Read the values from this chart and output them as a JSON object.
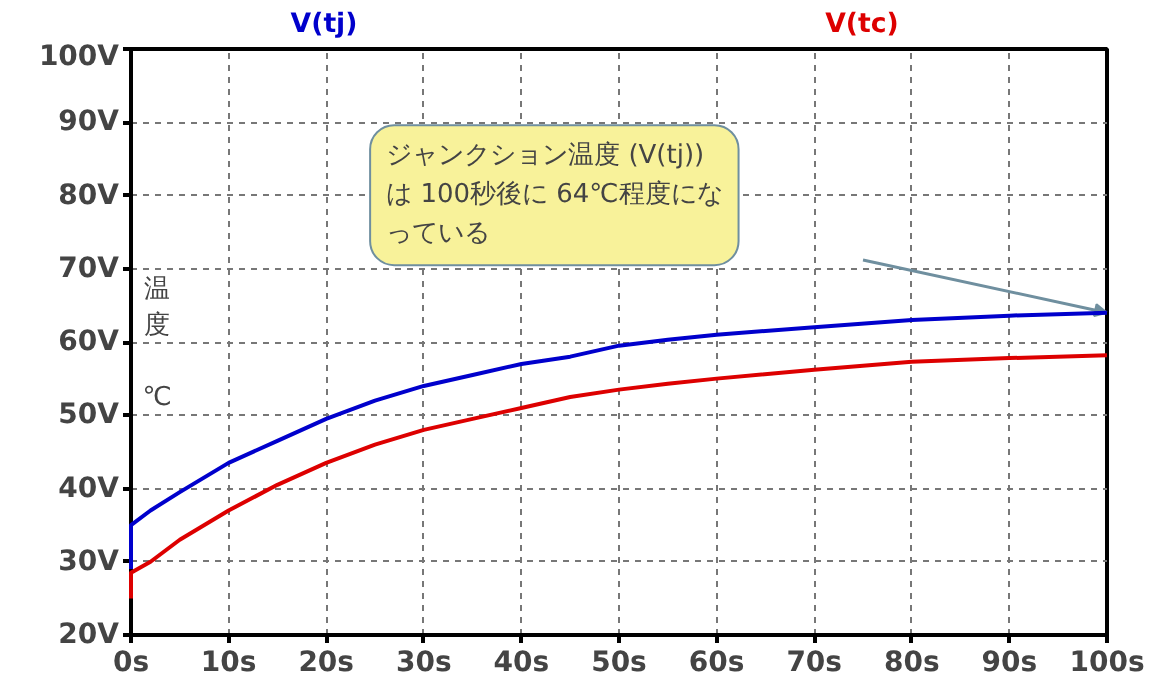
{
  "chart_data": {
    "type": "line",
    "ylabel": "温度 ℃",
    "x": [
      0,
      0,
      2,
      5,
      10,
      15,
      20,
      25,
      30,
      35,
      40,
      45,
      50,
      55,
      60,
      70,
      80,
      90,
      100
    ],
    "series": [
      {
        "name": "V(tj)",
        "color": "#0000cc",
        "values": [
          29,
          35,
          37,
          39.5,
          43.5,
          46.5,
          49.5,
          52,
          54,
          55.5,
          57,
          58,
          59.5,
          60.3,
          61,
          62,
          63,
          63.6,
          64
        ]
      },
      {
        "name": "V(tc)",
        "color": "#dd0000",
        "values": [
          25,
          28.5,
          30,
          33,
          37,
          40.5,
          43.5,
          46,
          48,
          49.5,
          51,
          52.5,
          53.5,
          54.3,
          55,
          56.2,
          57.3,
          57.8,
          58.2
        ]
      }
    ],
    "xlim": [
      0,
      100
    ],
    "xticks": [
      {
        "value": 0,
        "label": "0s"
      },
      {
        "value": 10,
        "label": "10s"
      },
      {
        "value": 20,
        "label": "20s"
      },
      {
        "value": 30,
        "label": "30s"
      },
      {
        "value": 40,
        "label": "40s"
      },
      {
        "value": 50,
        "label": "50s"
      },
      {
        "value": 60,
        "label": "60s"
      },
      {
        "value": 70,
        "label": "70s"
      },
      {
        "value": 80,
        "label": "80s"
      },
      {
        "value": 90,
        "label": "90s"
      },
      {
        "value": 100,
        "label": "100s"
      }
    ],
    "ylim": [
      20,
      100
    ],
    "yticks": [
      {
        "value": 20,
        "label": "20V"
      },
      {
        "value": 30,
        "label": "30V"
      },
      {
        "value": 40,
        "label": "40V"
      },
      {
        "value": 50,
        "label": "50V"
      },
      {
        "value": 60,
        "label": "60V"
      },
      {
        "value": 70,
        "label": "70V"
      },
      {
        "value": 80,
        "label": "80V"
      },
      {
        "value": 90,
        "label": "90V"
      },
      {
        "value": 100,
        "label": "100V"
      }
    ],
    "grid": true,
    "annotations": [
      "ジャンクション温度 (V(tj))は 100秒後に 64℃程度になっている"
    ]
  }
}
